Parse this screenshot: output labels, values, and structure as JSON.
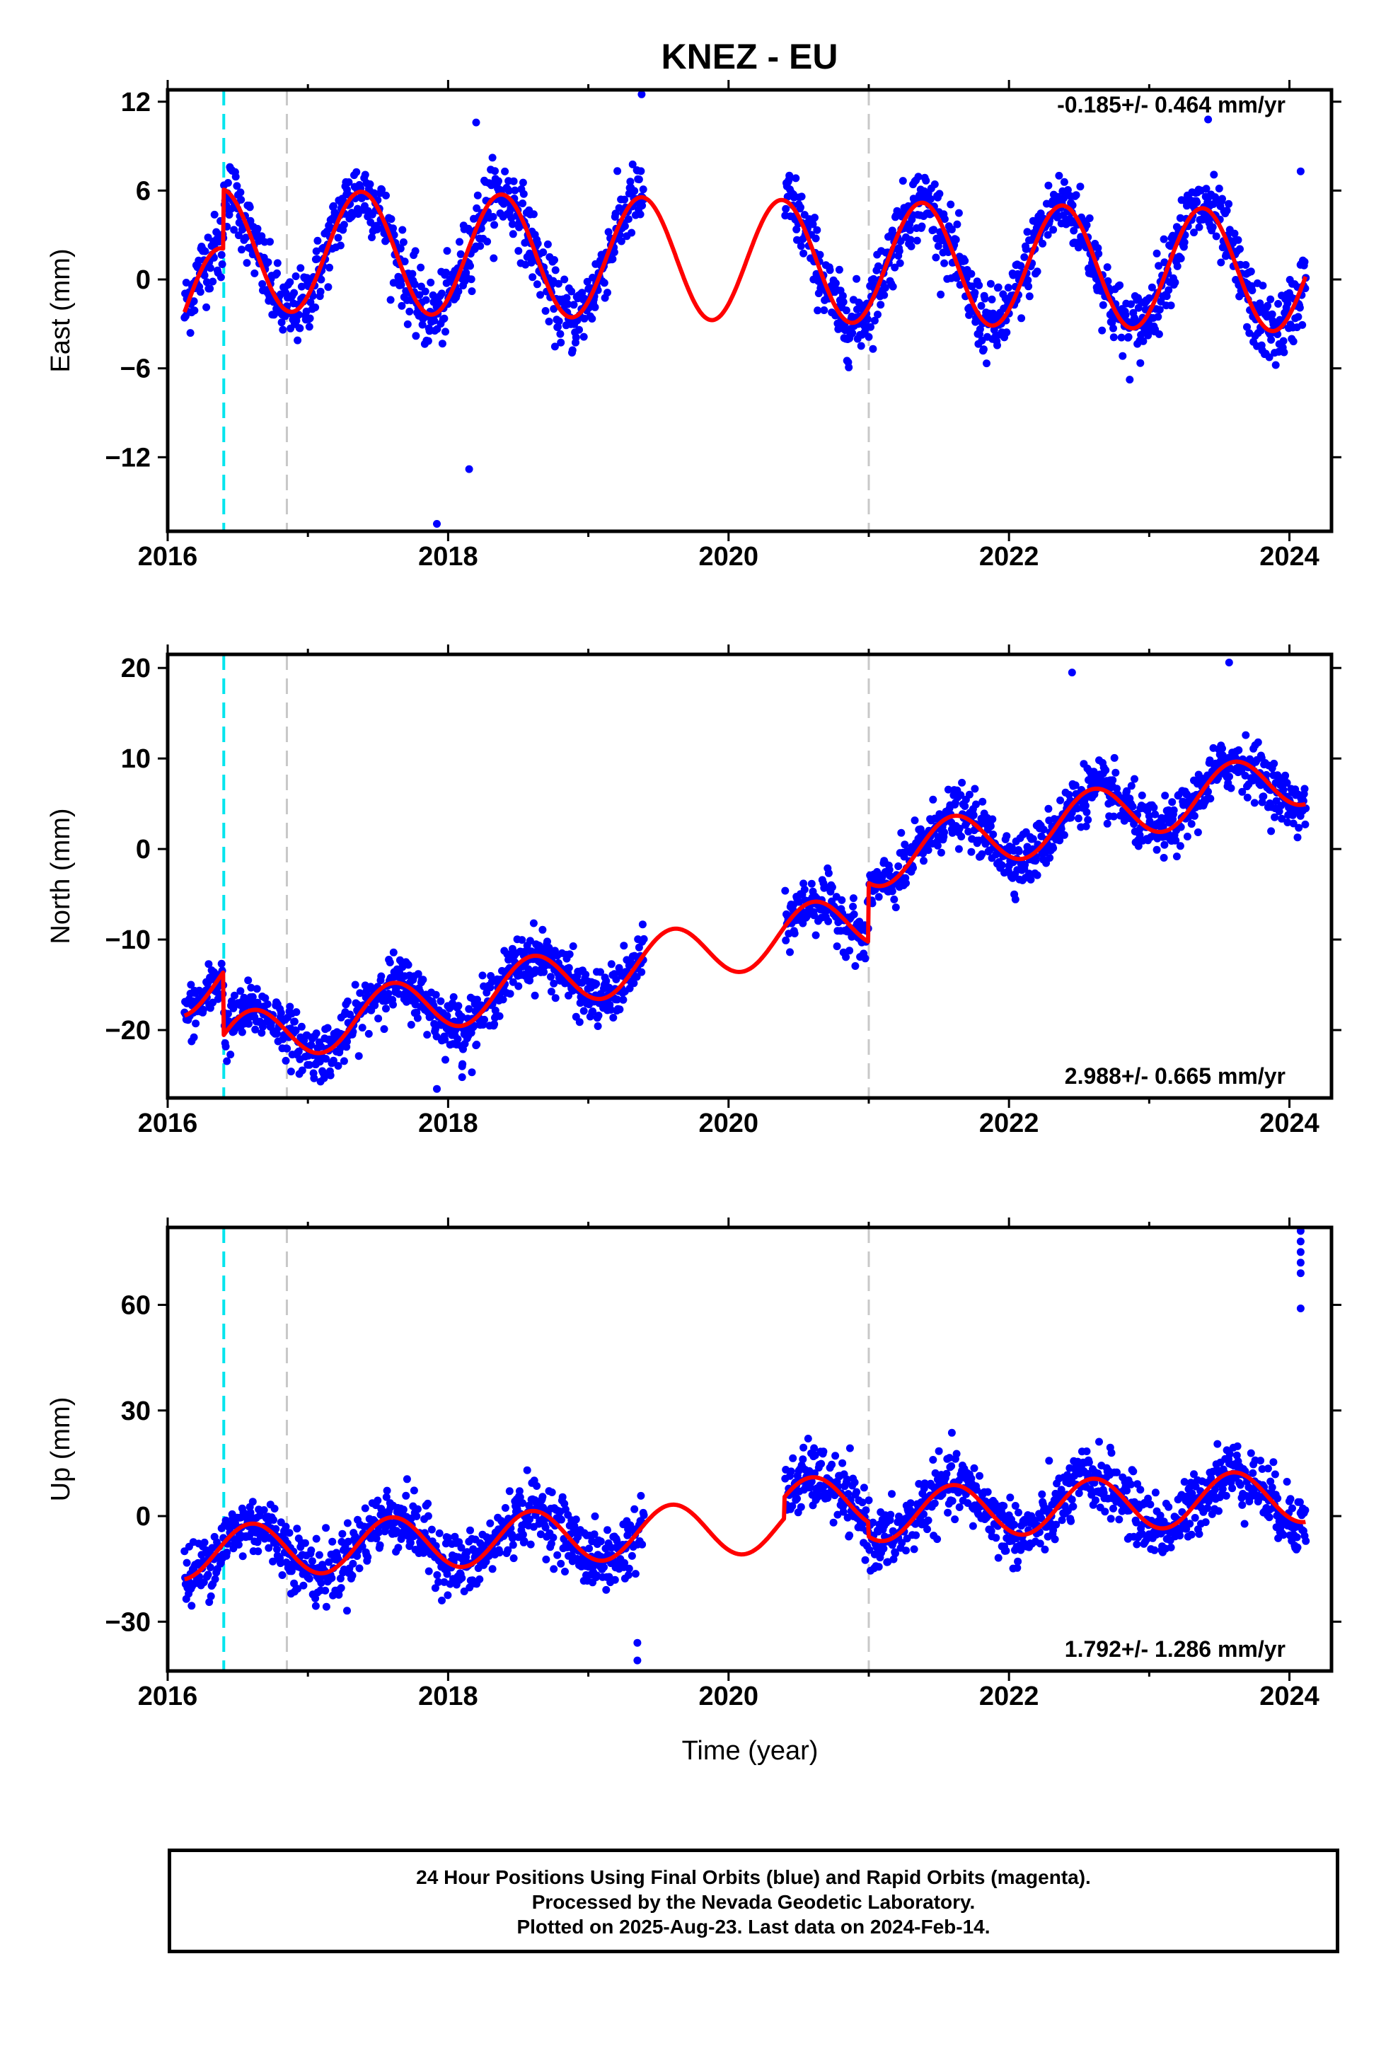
{
  "chart_data": {
    "type": "scatter",
    "title": "KNEZ - EU",
    "xlabel": "Time (year)",
    "xlim": [
      2016.0,
      2024.3
    ],
    "xticks": [
      2016,
      2018,
      2020,
      2022,
      2024
    ],
    "x_tick_labels": [
      "2016",
      "2018",
      "2020",
      "2022",
      "2024"
    ],
    "data_gap": [
      2019.4,
      2020.4
    ],
    "vertical_markers": [
      {
        "x": 2016.4,
        "color": "#00e5ee",
        "style": "dashed"
      },
      {
        "x": 2016.85,
        "color": "#c8c8c8",
        "style": "dashed"
      },
      {
        "x": 2021.0,
        "color": "#c8c8c8",
        "style": "dashed"
      }
    ],
    "panels": [
      {
        "ylabel": "East (mm)",
        "ylim": [
          -17,
          12.8
        ],
        "yticks": [
          12,
          6,
          0,
          -6,
          -12
        ],
        "y_tick_labels": [
          "12",
          "6",
          "0",
          "−6",
          "−12"
        ],
        "rate_label": "-0.185+/- 0.464 mm/yr",
        "rate_position": "top-right",
        "series": [
          {
            "name": "Final Orbits",
            "color": "#0000ff",
            "style": "points"
          },
          {
            "name": "Model fit",
            "color": "#ff0000",
            "style": "line"
          }
        ],
        "model": {
          "trend": -0.185,
          "amplitude": 4.1,
          "peak_phase": 0.38,
          "offsets": [
            [
              2016.0,
              -2.0
            ],
            [
              2016.4,
              4.0
            ]
          ]
        },
        "noise": 1.2,
        "outliers": [
          [
            2017.92,
            -16.5
          ],
          [
            2018.15,
            -12.8
          ],
          [
            2019.38,
            12.5
          ],
          [
            2018.2,
            10.6
          ],
          [
            2023.42,
            10.8
          ],
          [
            2024.08,
            7.3
          ]
        ]
      },
      {
        "ylabel": "North (mm)",
        "ylim": [
          -27.5,
          21.5
        ],
        "yticks": [
          20,
          10,
          0,
          -10,
          -20
        ],
        "y_tick_labels": [
          "20",
          "10",
          "0",
          "−10",
          "−20"
        ],
        "rate_label": "2.988+/- 0.665 mm/yr",
        "rate_position": "bottom-right",
        "series": [
          {
            "name": "Final Orbits",
            "color": "#0000ff",
            "style": "points"
          },
          {
            "name": "Model fit",
            "color": "#ff0000",
            "style": "line"
          }
        ],
        "model": {
          "trend": 2.988,
          "amplitude": 3.1,
          "peak_phase": 0.6,
          "offsets": [
            [
              2016.0,
              -14.5
            ],
            [
              2016.4,
              -7.0
            ],
            [
              2021.0,
              6.5
            ]
          ]
        },
        "noise": 1.5,
        "outliers": [
          [
            2017.92,
            -26.5
          ],
          [
            2018.1,
            -25.2
          ],
          [
            2018.1,
            -24.0
          ],
          [
            2023.57,
            20.6
          ],
          [
            2022.45,
            19.5
          ]
        ]
      },
      {
        "ylabel": "Up (mm)",
        "ylim": [
          -44,
          82
        ],
        "yticks": [
          60,
          30,
          0,
          -30
        ],
        "y_tick_labels": [
          "60",
          "30",
          "0",
          "−30"
        ],
        "rate_label": "1.792+/- 1.286 mm/yr",
        "rate_position": "bottom-right",
        "series": [
          {
            "name": "Final Orbits",
            "color": "#0000ff",
            "style": "points"
          },
          {
            "name": "Model fit",
            "color": "#ff0000",
            "style": "line"
          }
        ],
        "model": {
          "trend": 1.792,
          "amplitude": 7.5,
          "peak_phase": 0.6,
          "offsets": [
            [
              2016.0,
              -10.0
            ],
            [
              2020.4,
              6.0
            ],
            [
              2021.0,
              -4.0
            ]
          ]
        },
        "noise": 4.5,
        "outliers": [
          [
            2019.35,
            -41.0
          ],
          [
            2019.35,
            -36.0
          ],
          [
            2024.08,
            81
          ],
          [
            2024.08,
            78
          ],
          [
            2024.08,
            75
          ],
          [
            2024.08,
            72
          ],
          [
            2024.08,
            69
          ],
          [
            2024.08,
            59
          ]
        ]
      }
    ],
    "caption": [
      "24 Hour Positions Using Final Orbits (blue) and Rapid Orbits (magenta).",
      "Processed by the Nevada Geodetic Laboratory.",
      "Plotted on 2025-Aug-23. Last data on 2024-Feb-14."
    ]
  }
}
